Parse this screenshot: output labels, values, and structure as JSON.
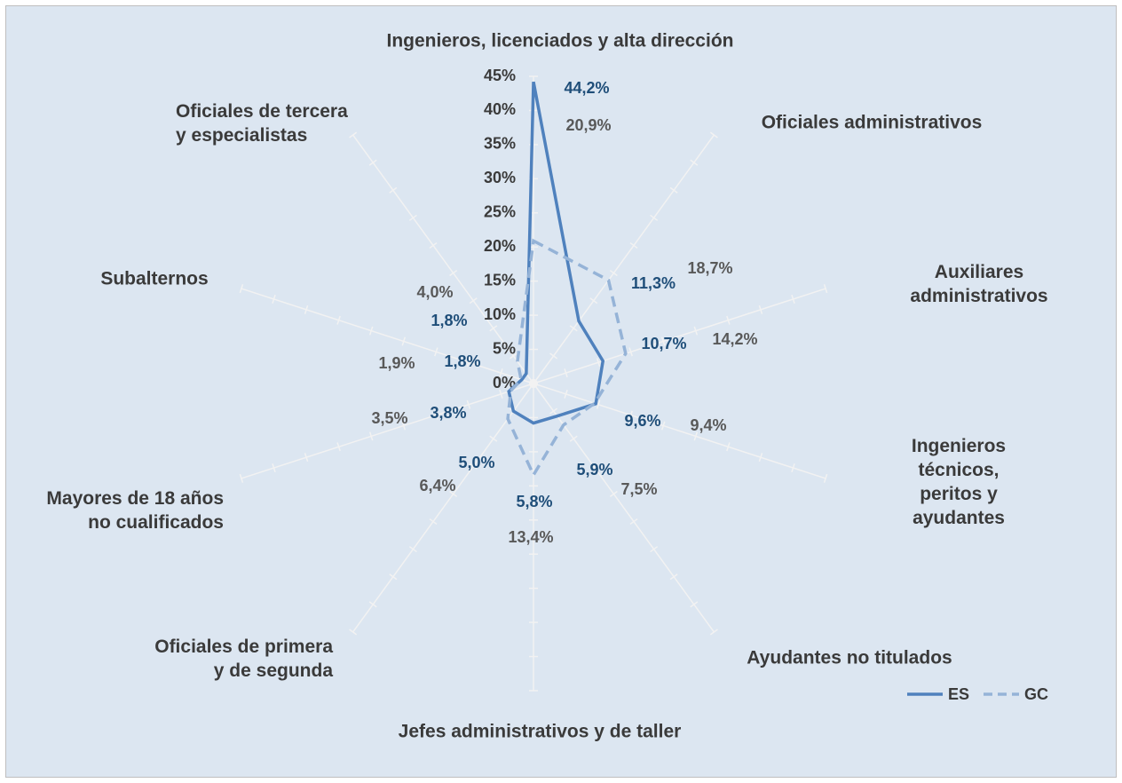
{
  "chart_data": {
    "type": "radar",
    "categories": [
      "Ingenieros, licenciados y alta dirección",
      "Oficiales administrativos",
      "Auxiliares administrativos",
      "Ingenieros técnicos,\nperitos y ayudantes",
      "Ayudantes no titulados",
      "Jefes administrativos y de taller",
      "Oficiales de primera\ny de segunda",
      "Mayores de 18 años\nno cualificados",
      "Subalternos",
      "Oficiales de tercera\ny especialistas"
    ],
    "series": [
      {
        "name": "ES",
        "color": "#4f81bd",
        "dash": false,
        "values": [
          44.2,
          11.3,
          10.7,
          9.6,
          5.9,
          5.8,
          5.0,
          3.8,
          1.8,
          1.8
        ],
        "value_labels": [
          "44,2%",
          "11,3%",
          "10,7%",
          "9,6%",
          "5,9%",
          "5,8%",
          "5,0%",
          "3,8%",
          "1,8%",
          "1,8%"
        ],
        "label_color": "#1f4e79"
      },
      {
        "name": "GC",
        "color": "#95b3d7",
        "dash": true,
        "values": [
          20.9,
          18.7,
          14.2,
          9.4,
          7.5,
          13.4,
          6.4,
          3.5,
          1.9,
          4.0
        ],
        "value_labels": [
          "20,9%",
          "18,7%",
          "14,2%",
          "9,4%",
          "7,5%",
          "13,4%",
          "6,4%",
          "3,5%",
          "1,9%",
          "4,0%"
        ],
        "label_color": "#595959"
      }
    ],
    "rlim": [
      0,
      45
    ],
    "rticks": [
      {
        "value": 0,
        "label": "0%"
      },
      {
        "value": 5,
        "label": "5%"
      },
      {
        "value": 10,
        "label": "10%"
      },
      {
        "value": 15,
        "label": "15%"
      },
      {
        "value": 20,
        "label": "20%"
      },
      {
        "value": 25,
        "label": "25%"
      },
      {
        "value": 30,
        "label": "30%"
      },
      {
        "value": 35,
        "label": "35%"
      },
      {
        "value": 40,
        "label": "40%"
      },
      {
        "value": 45,
        "label": "45%"
      }
    ],
    "legend": "bottom-right"
  }
}
